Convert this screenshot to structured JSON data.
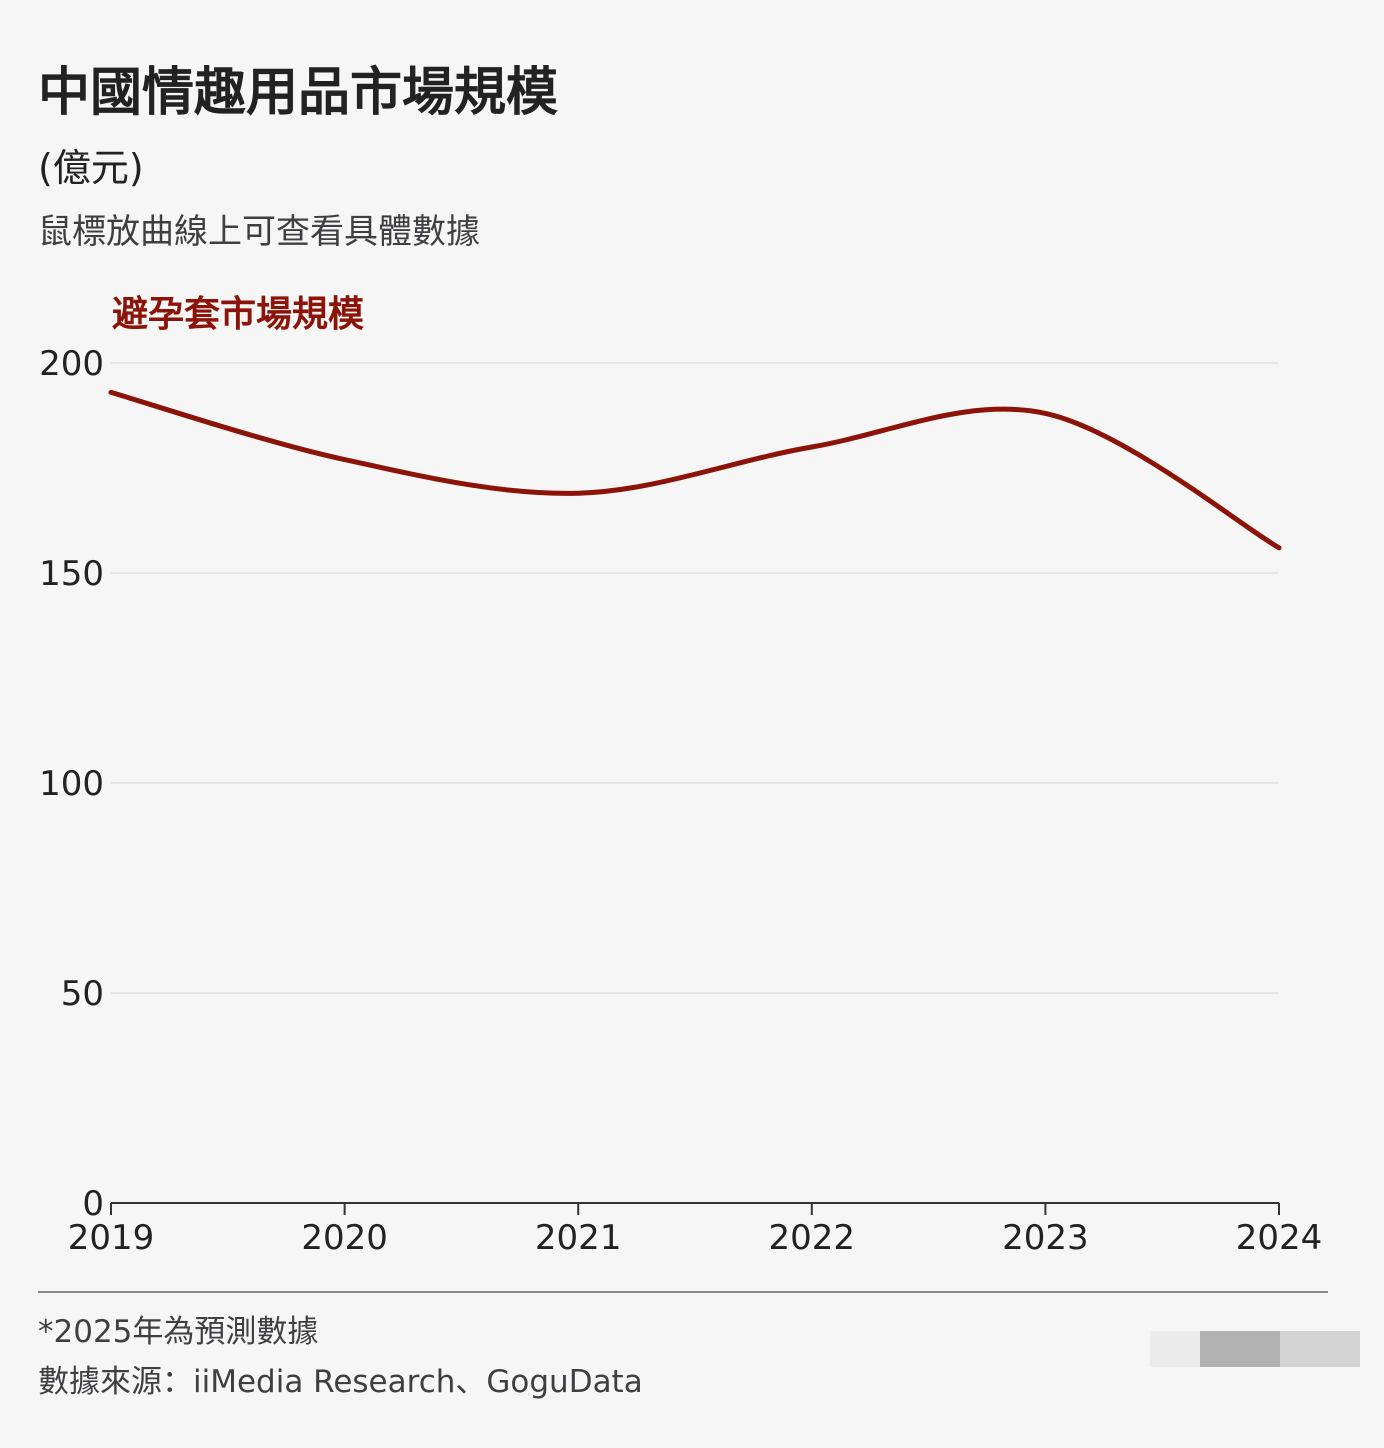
{
  "header": {
    "title": "中國情趣用品市場規模",
    "unit": "(億元)",
    "hint": "鼠標放曲線上可查看具體數據"
  },
  "chart_data": {
    "type": "line",
    "x": [
      2019,
      2020,
      2021,
      2022,
      2023,
      2024
    ],
    "series": [
      {
        "name": "避孕套市場規模",
        "values": [
          193,
          177,
          169,
          180,
          188,
          156
        ],
        "color": "#8b1307"
      }
    ],
    "ylim": [
      0,
      200
    ],
    "yticks": [
      0,
      50,
      100,
      150,
      200
    ],
    "xlim": [
      2019,
      2024
    ],
    "grid": true,
    "xlabel": "",
    "ylabel": ""
  },
  "footer": {
    "note": "*2025年為預測數據",
    "source": "數據來源：iiMedia Research、GoguData"
  },
  "colors": {
    "line": "#8b1307",
    "text": "#222222",
    "gridline": "#e6e6e6",
    "axis": "#333333"
  }
}
